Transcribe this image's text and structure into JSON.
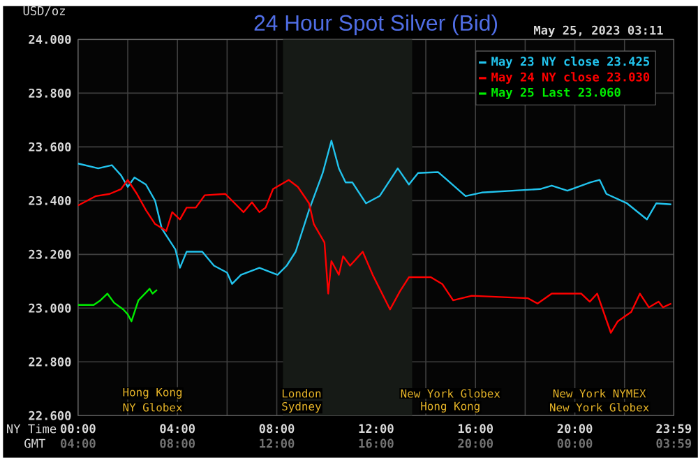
{
  "chart_data": {
    "type": "line",
    "title": "24 Hour Spot Silver (Bid)",
    "subtitle": "May 25, 2023 03:11",
    "ylabel": "USD/oz",
    "xlabel": "NY Time",
    "x2label": "GMT",
    "xlim": [
      0,
      23.983
    ],
    "ylim": [
      22.6,
      24.0
    ],
    "xticks": [
      {
        "value": 0,
        "label": "00:00"
      },
      {
        "value": 2,
        "label": null
      },
      {
        "value": 4,
        "label": "04:00"
      },
      {
        "value": 6,
        "label": null
      },
      {
        "value": 8,
        "label": "08:00"
      },
      {
        "value": 10,
        "label": null
      },
      {
        "value": 12,
        "label": "12:00"
      },
      {
        "value": 14,
        "label": null
      },
      {
        "value": 16,
        "label": "16:00"
      },
      {
        "value": 18,
        "label": null
      },
      {
        "value": 20,
        "label": "20:00"
      },
      {
        "value": 22,
        "label": null
      },
      {
        "value": 23.983,
        "label": "23:59"
      }
    ],
    "x2lim": [
      "2023-05-24T04:00",
      "2023-05-25T03:59"
    ],
    "x2ticks": [
      {
        "value": "2023-05-24T04:00",
        "label": "04:00"
      },
      {
        "value": "2023-05-24T08:00",
        "label": "08:00"
      },
      {
        "value": "2023-05-24T12:00",
        "label": "12:00"
      },
      {
        "value": "2023-05-24T16:00",
        "label": "16:00"
      },
      {
        "value": "2023-05-24T20:00",
        "label": "20:00"
      },
      {
        "value": "2023-05-25T00:00",
        "label": "00:00"
      },
      {
        "value": "2023-05-25T03:59",
        "label": "03:59"
      }
    ],
    "yticks": [
      {
        "value": 22.6,
        "label": "22.600"
      },
      {
        "value": 22.8,
        "label": "22.800"
      },
      {
        "value": 23.0,
        "label": "23.000"
      },
      {
        "value": 23.2,
        "label": "23.200"
      },
      {
        "value": 23.4,
        "label": "23.400"
      },
      {
        "value": 23.6,
        "label": "23.600"
      },
      {
        "value": 23.8,
        "label": "23.800"
      },
      {
        "value": 24.0,
        "label": "24.000"
      }
    ],
    "grid": true,
    "legend": "top right",
    "bands": [
      {
        "axis": "x",
        "from": 8.25,
        "to": 13.45,
        "color": "#161a16"
      }
    ],
    "annotations": [
      "Hong Kong",
      "London",
      "New York Globex",
      "New York NYMEX",
      "NY Globex",
      "Sydney",
      "Hong Kong",
      "New York Globex"
    ],
    "series": [
      {
        "name": "May 23 NY close 23.425",
        "color": "#22c4ee",
        "x": [
          0,
          0.81,
          1.36,
          1.73,
          2.0,
          2.27,
          2.73,
          3.1,
          3.37,
          3.92,
          4.1,
          4.37,
          5.0,
          5.47,
          6.0,
          6.2,
          6.56,
          7.3,
          8.03,
          8.4,
          8.76,
          9.3,
          9.85,
          10.2,
          10.5,
          10.77,
          11.04,
          11.59,
          12.14,
          12.87,
          13.32,
          13.69,
          14.5,
          15.6,
          16.25,
          18.6,
          19.07,
          19.7,
          20.63,
          21.0,
          21.27,
          22.1,
          22.9,
          23.28,
          23.88
        ],
        "values": [
          23.538,
          23.52,
          23.532,
          23.494,
          23.451,
          23.486,
          23.46,
          23.4,
          23.296,
          23.218,
          23.15,
          23.21,
          23.21,
          23.158,
          23.132,
          23.09,
          23.124,
          23.15,
          23.124,
          23.158,
          23.21,
          23.365,
          23.503,
          23.623,
          23.52,
          23.468,
          23.468,
          23.39,
          23.417,
          23.52,
          23.46,
          23.503,
          23.506,
          23.417,
          23.43,
          23.443,
          23.456,
          23.437,
          23.468,
          23.477,
          23.425,
          23.39,
          23.33,
          23.39,
          23.386
        ]
      },
      {
        "name": "May 24 NY close 23.030",
        "color": "#ff0000",
        "x": [
          0,
          0.72,
          1.27,
          1.73,
          2.0,
          2.37,
          2.73,
          3.1,
          3.55,
          3.79,
          4.1,
          4.37,
          4.74,
          5.1,
          5.93,
          6.66,
          7.0,
          7.3,
          7.55,
          7.85,
          8.48,
          8.85,
          9.3,
          9.49,
          9.92,
          10.07,
          10.2,
          10.5,
          10.67,
          10.95,
          11.46,
          11.86,
          12.56,
          12.96,
          13.32,
          14.2,
          14.67,
          15.1,
          15.85,
          18.1,
          18.5,
          19.07,
          20.26,
          20.6,
          20.9,
          21.45,
          21.73,
          22.27,
          22.62,
          22.98,
          23.37,
          23.55,
          23.88
        ],
        "values": [
          23.382,
          23.417,
          23.425,
          23.443,
          23.477,
          23.425,
          23.365,
          23.313,
          23.287,
          23.357,
          23.33,
          23.374,
          23.374,
          23.42,
          23.425,
          23.357,
          23.394,
          23.357,
          23.374,
          23.443,
          23.477,
          23.451,
          23.39,
          23.313,
          23.244,
          23.054,
          23.175,
          23.124,
          23.193,
          23.158,
          23.21,
          23.124,
          22.995,
          23.063,
          23.115,
          23.115,
          23.089,
          23.029,
          23.046,
          23.037,
          23.017,
          23.054,
          23.054,
          23.024,
          23.054,
          22.908,
          22.951,
          22.986,
          23.054,
          23.003,
          23.024,
          23.003,
          23.017
        ]
      },
      {
        "name": "May 25 Last 23.060",
        "color": "#00ee00",
        "x": [
          0,
          0.63,
          0.9,
          1.18,
          1.45,
          1.82,
          2.0,
          2.15,
          2.43,
          2.88,
          3.0,
          3.18
        ],
        "values": [
          23.012,
          23.012,
          23.029,
          23.054,
          23.02,
          22.995,
          22.977,
          22.951,
          23.029,
          23.072,
          23.054,
          23.068
        ]
      }
    ]
  }
}
